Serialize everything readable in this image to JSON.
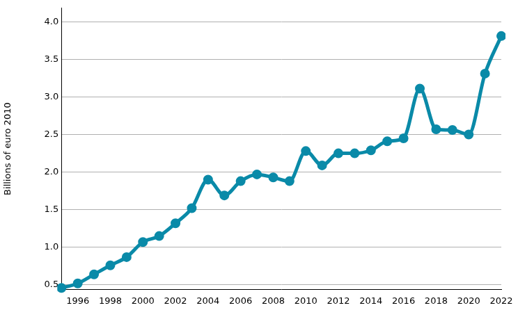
{
  "chart_data": {
    "type": "line",
    "y_label": "Billions of euro 2010",
    "x": [
      1995,
      1996,
      1997,
      1998,
      1999,
      2000,
      2001,
      2002,
      2003,
      2004,
      2005,
      2006,
      2007,
      2008,
      2009,
      2010,
      2011,
      2012,
      2013,
      2014,
      2015,
      2016,
      2017,
      2018,
      2019,
      2020,
      2021,
      2022
    ],
    "values": [
      0.46,
      0.52,
      0.64,
      0.76,
      0.87,
      1.07,
      1.15,
      1.32,
      1.52,
      1.9,
      1.69,
      1.88,
      1.97,
      1.93,
      1.88,
      2.28,
      2.09,
      2.25,
      2.25,
      2.29,
      2.41,
      2.45,
      3.11,
      2.57,
      2.56,
      2.5,
      3.31,
      3.81
    ],
    "color": "#0a8aa8",
    "marker": "circle",
    "line_style": "solid",
    "xlim": [
      1995,
      2022
    ],
    "xticks": [
      1996,
      1998,
      2000,
      2002,
      2004,
      2006,
      2008,
      2010,
      2012,
      2014,
      2016,
      2018,
      2020,
      2022
    ],
    "ylim": [
      0.44,
      4.18
    ],
    "yticks": [
      0.5,
      {
        "value": 1.0,
        "label": "1.0"
      },
      1.5,
      {
        "value": 2.0,
        "label": "2.0"
      },
      2.5,
      {
        "value": 3.0,
        "label": "3.0"
      },
      3.5,
      {
        "value": 4.0,
        "label": "4.0"
      }
    ],
    "grid": true
  }
}
